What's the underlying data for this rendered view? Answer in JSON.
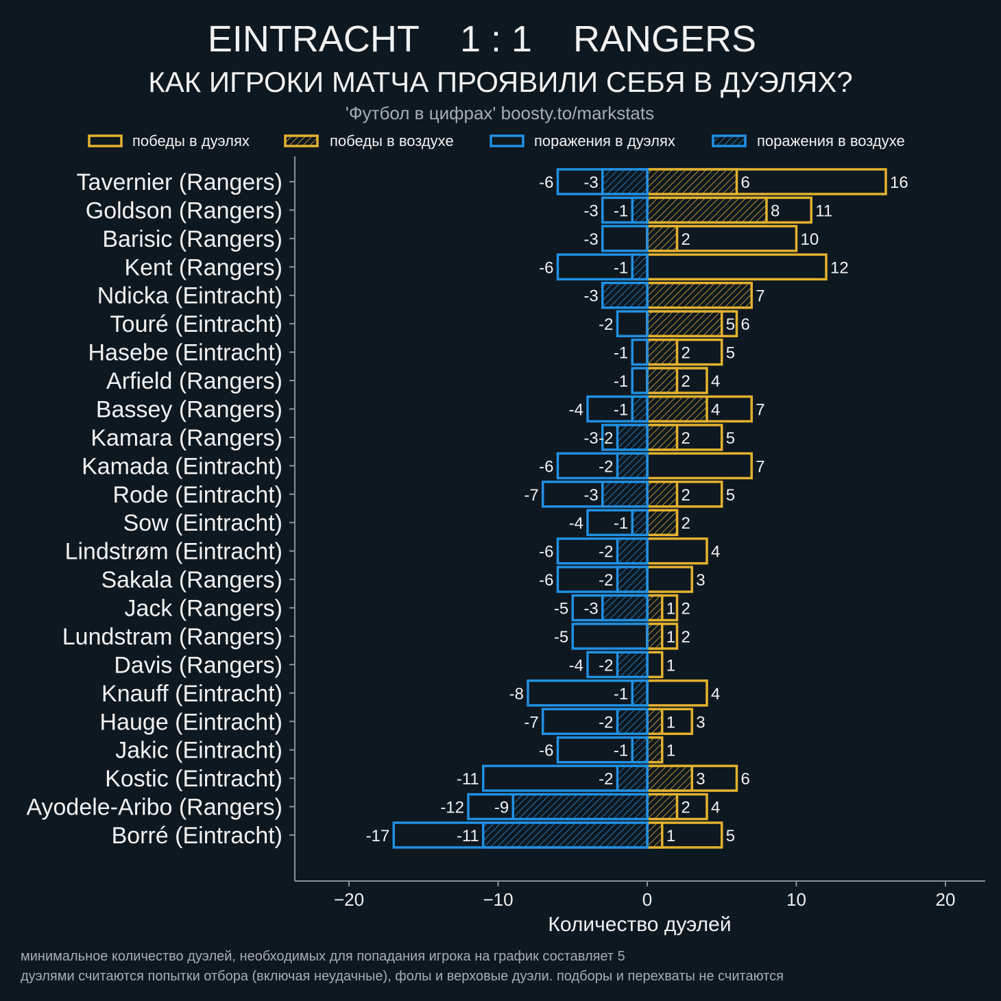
{
  "colors": {
    "background": "#0e1820",
    "wins": "#e4b22f",
    "losses": "#2190e3",
    "text": "#f2f2f2",
    "muted": "#a9adb3",
    "axis": "#8b9096"
  },
  "chart_data": {
    "type": "bar",
    "orientation": "horizontal",
    "stacking": "diverging, hatched subset overlaid on total",
    "title": "EINTRACHT    1 : 1    RANGERS",
    "subtitle": "КАК ИГРОКИ МАТЧА ПРОЯВИЛИ СЕБЯ В ДУЭЛЯХ?",
    "source": "'Футбол в цифрах' boosty.to/markstats",
    "xlabel": "Количество дуэлей",
    "ylabel": "",
    "xlim": [
      -23.6,
      22.7
    ],
    "x_ticks": [
      -20,
      -10,
      0,
      10,
      20
    ],
    "x_tick_labels": [
      "−20",
      "−10",
      "0",
      "10",
      "20"
    ],
    "grid": false,
    "legend": "top",
    "categories": [
      "Tavernier (Rangers)",
      "Goldson (Rangers)",
      "Barisic (Rangers)",
      "Kent (Rangers)",
      "Ndicka (Eintracht)",
      "Touré (Eintracht)",
      "Hasebe (Eintracht)",
      "Arfield (Rangers)",
      "Bassey (Rangers)",
      "Kamara (Rangers)",
      "Kamada (Eintracht)",
      "Rode (Eintracht)",
      "Sow (Eintracht)",
      "Lindstrøm (Eintracht)",
      "Sakala (Rangers)",
      "Jack (Rangers)",
      "Lundstram (Rangers)",
      "Davis (Rangers)",
      "Knauff (Eintracht)",
      "Hauge (Eintracht)",
      "Jakic (Eintracht)",
      "Kostic (Eintracht)",
      "Ayodele-Aribo (Rangers)",
      "Borré (Eintracht)"
    ],
    "series": [
      {
        "name": "победы в дуэлях",
        "style": "outline",
        "color": "#e4b22f",
        "values": [
          16,
          11,
          10,
          12,
          7,
          6,
          5,
          4,
          7,
          5,
          7,
          5,
          2,
          4,
          3,
          2,
          2,
          1,
          4,
          3,
          1,
          6,
          4,
          5
        ]
      },
      {
        "name": "победы в воздухе",
        "style": "hatched",
        "color": "#e4b22f",
        "values": [
          6,
          8,
          2,
          0,
          7,
          5,
          2,
          2,
          4,
          2,
          0,
          2,
          2,
          0,
          0,
          1,
          1,
          0,
          0,
          1,
          1,
          3,
          2,
          1
        ]
      },
      {
        "name": "поражения в дуэлях",
        "style": "outline",
        "color": "#2190e3",
        "values": [
          -6,
          -3,
          -3,
          -6,
          -3,
          -2,
          -1,
          -1,
          -4,
          -3,
          -6,
          -7,
          -4,
          -6,
          -6,
          -5,
          -5,
          -4,
          -8,
          -7,
          -6,
          -11,
          -12,
          -17
        ]
      },
      {
        "name": "поражения в воздухе",
        "style": "hatched",
        "color": "#2190e3",
        "values": [
          -3,
          -1,
          0,
          -1,
          -3,
          0,
          0,
          0,
          -1,
          -2,
          -2,
          -3,
          -1,
          -2,
          -2,
          -3,
          0,
          -2,
          -1,
          -2,
          -1,
          -2,
          -9,
          -11
        ]
      }
    ],
    "notes": [
      "минимальное количество дуэлей, необходимых для попадания игрока на график составляет 5",
      "дуэлями считаются попытки отбора (включая неудачные), фолы и верховые дуэли. подборы и перехваты не считаются"
    ]
  }
}
